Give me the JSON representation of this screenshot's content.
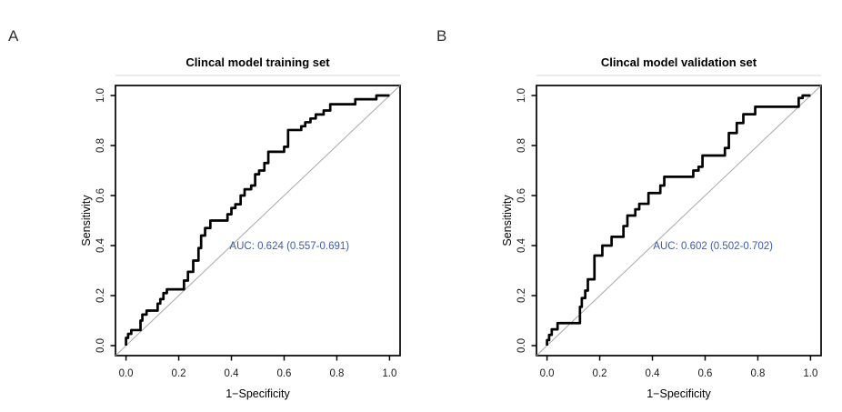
{
  "figure": {
    "background": "#ffffff",
    "colors": {
      "axis": "#000000",
      "tick_text": "#1a1a1a",
      "curve": "#000000",
      "reference_line": "#a8a8a8",
      "annotation": "#3e5ca6",
      "header_rule": "#dadada",
      "panel_letter": "#2f2f2f"
    }
  },
  "chart_data": [
    {
      "panel": "A",
      "type": "line",
      "subtype": "roc-step-curve",
      "title": "Clincal model training set",
      "xlabel": "1−Specificity",
      "ylabel": "Sensitivity",
      "xlim": [
        0,
        1
      ],
      "ylim": [
        0,
        1
      ],
      "axis_padding_frac": 0.04,
      "grid": false,
      "legend": null,
      "xticks": [
        0.0,
        0.2,
        0.4,
        0.6,
        0.8,
        1.0
      ],
      "yticks": [
        0.0,
        0.2,
        0.4,
        0.6,
        0.8,
        1.0
      ],
      "xtick_labels": [
        "0.0",
        "0.2",
        "0.4",
        "0.6",
        "0.8",
        "1.0"
      ],
      "ytick_labels": [
        "0.0",
        "0.2",
        "0.4",
        "0.6",
        "0.8",
        "1.0"
      ],
      "reference_line": {
        "from": [
          0,
          0
        ],
        "to": [
          1,
          1
        ]
      },
      "auc": 0.624,
      "auc_ci": [
        0.557,
        0.691
      ],
      "annotation": {
        "text": "AUC:  0.624 (0.557-0.691)",
        "x": 0.62,
        "y": 0.385
      },
      "series": [
        {
          "name": "ROC curve",
          "points": [
            [
              0,
              0
            ],
            [
              0,
              0.031
            ],
            [
              0.008,
              0.031
            ],
            [
              0.008,
              0.047
            ],
            [
              0.02,
              0.047
            ],
            [
              0.02,
              0.062
            ],
            [
              0.032,
              0.062
            ],
            [
              0.055,
              0.062
            ],
            [
              0.055,
              0.1
            ],
            [
              0.062,
              0.1
            ],
            [
              0.062,
              0.124
            ],
            [
              0.078,
              0.124
            ],
            [
              0.078,
              0.14
            ],
            [
              0.12,
              0.14
            ],
            [
              0.12,
              0.168
            ],
            [
              0.13,
              0.168
            ],
            [
              0.13,
              0.186
            ],
            [
              0.142,
              0.186
            ],
            [
              0.142,
              0.21
            ],
            [
              0.155,
              0.21
            ],
            [
              0.155,
              0.225
            ],
            [
              0.22,
              0.225
            ],
            [
              0.22,
              0.26
            ],
            [
              0.235,
              0.26
            ],
            [
              0.235,
              0.295
            ],
            [
              0.255,
              0.295
            ],
            [
              0.255,
              0.34
            ],
            [
              0.275,
              0.34
            ],
            [
              0.275,
              0.39
            ],
            [
              0.285,
              0.39
            ],
            [
              0.285,
              0.44
            ],
            [
              0.3,
              0.44
            ],
            [
              0.3,
              0.47
            ],
            [
              0.32,
              0.47
            ],
            [
              0.32,
              0.5
            ],
            [
              0.385,
              0.5
            ],
            [
              0.385,
              0.525
            ],
            [
              0.4,
              0.525
            ],
            [
              0.4,
              0.55
            ],
            [
              0.415,
              0.55
            ],
            [
              0.415,
              0.565
            ],
            [
              0.435,
              0.565
            ],
            [
              0.435,
              0.6
            ],
            [
              0.45,
              0.6
            ],
            [
              0.45,
              0.625
            ],
            [
              0.475,
              0.625
            ],
            [
              0.475,
              0.64
            ],
            [
              0.49,
              0.64
            ],
            [
              0.49,
              0.685
            ],
            [
              0.505,
              0.685
            ],
            [
              0.505,
              0.7
            ],
            [
              0.525,
              0.7
            ],
            [
              0.525,
              0.73
            ],
            [
              0.54,
              0.73
            ],
            [
              0.54,
              0.775
            ],
            [
              0.555,
              0.775
            ],
            [
              0.6,
              0.775
            ],
            [
              0.6,
              0.795
            ],
            [
              0.615,
              0.795
            ],
            [
              0.615,
              0.862
            ],
            [
              0.63,
              0.862
            ],
            [
              0.665,
              0.862
            ],
            [
              0.665,
              0.877
            ],
            [
              0.68,
              0.877
            ],
            [
              0.68,
              0.893
            ],
            [
              0.7,
              0.893
            ],
            [
              0.7,
              0.908
            ],
            [
              0.72,
              0.908
            ],
            [
              0.72,
              0.924
            ],
            [
              0.75,
              0.924
            ],
            [
              0.75,
              0.94
            ],
            [
              0.775,
              0.94
            ],
            [
              0.775,
              0.965
            ],
            [
              0.8,
              0.965
            ],
            [
              0.87,
              0.965
            ],
            [
              0.87,
              0.985
            ],
            [
              0.95,
              0.985
            ],
            [
              0.95,
              1
            ],
            [
              1,
              1
            ]
          ]
        }
      ]
    },
    {
      "panel": "B",
      "type": "line",
      "subtype": "roc-step-curve",
      "title": "Clincal model validation set",
      "xlabel": "1−Specificity",
      "ylabel": "Sensitivity",
      "xlim": [
        0,
        1
      ],
      "ylim": [
        0,
        1
      ],
      "axis_padding_frac": 0.04,
      "grid": false,
      "legend": null,
      "xticks": [
        0.0,
        0.2,
        0.4,
        0.6,
        0.8,
        1.0
      ],
      "yticks": [
        0.0,
        0.2,
        0.4,
        0.6,
        0.8,
        1.0
      ],
      "xtick_labels": [
        "0.0",
        "0.2",
        "0.4",
        "0.6",
        "0.8",
        "1.0"
      ],
      "ytick_labels": [
        "0.0",
        "0.2",
        "0.4",
        "0.6",
        "0.8",
        "1.0"
      ],
      "reference_line": {
        "from": [
          0,
          0
        ],
        "to": [
          1,
          1
        ]
      },
      "auc": 0.602,
      "auc_ci": [
        0.502,
        0.702
      ],
      "annotation": {
        "text": "AUC:  0.602 (0.502-0.702)",
        "x": 0.63,
        "y": 0.385
      },
      "series": [
        {
          "name": "ROC curve",
          "points": [
            [
              0,
              0
            ],
            [
              0,
              0.022
            ],
            [
              0.008,
              0.022
            ],
            [
              0.008,
              0.043
            ],
            [
              0.018,
              0.043
            ],
            [
              0.018,
              0.065
            ],
            [
              0.04,
              0.065
            ],
            [
              0.04,
              0.09
            ],
            [
              0.055,
              0.09
            ],
            [
              0.125,
              0.09
            ],
            [
              0.125,
              0.155
            ],
            [
              0.132,
              0.155
            ],
            [
              0.132,
              0.19
            ],
            [
              0.145,
              0.19
            ],
            [
              0.145,
              0.22
            ],
            [
              0.155,
              0.22
            ],
            [
              0.155,
              0.265
            ],
            [
              0.18,
              0.265
            ],
            [
              0.18,
              0.36
            ],
            [
              0.21,
              0.36
            ],
            [
              0.21,
              0.4
            ],
            [
              0.245,
              0.4
            ],
            [
              0.245,
              0.435
            ],
            [
              0.29,
              0.435
            ],
            [
              0.29,
              0.478
            ],
            [
              0.305,
              0.478
            ],
            [
              0.305,
              0.52
            ],
            [
              0.335,
              0.52
            ],
            [
              0.335,
              0.545
            ],
            [
              0.35,
              0.545
            ],
            [
              0.35,
              0.567
            ],
            [
              0.385,
              0.567
            ],
            [
              0.385,
              0.61
            ],
            [
              0.43,
              0.61
            ],
            [
              0.43,
              0.64
            ],
            [
              0.445,
              0.64
            ],
            [
              0.445,
              0.675
            ],
            [
              0.46,
              0.675
            ],
            [
              0.555,
              0.675
            ],
            [
              0.555,
              0.7
            ],
            [
              0.575,
              0.7
            ],
            [
              0.575,
              0.715
            ],
            [
              0.59,
              0.715
            ],
            [
              0.59,
              0.76
            ],
            [
              0.675,
              0.76
            ],
            [
              0.675,
              0.79
            ],
            [
              0.69,
              0.79
            ],
            [
              0.69,
              0.85
            ],
            [
              0.72,
              0.85
            ],
            [
              0.72,
              0.89
            ],
            [
              0.745,
              0.89
            ],
            [
              0.745,
              0.925
            ],
            [
              0.79,
              0.925
            ],
            [
              0.79,
              0.955
            ],
            [
              0.815,
              0.955
            ],
            [
              0.955,
              0.955
            ],
            [
              0.955,
              0.99
            ],
            [
              0.97,
              0.99
            ],
            [
              0.97,
              1
            ],
            [
              1,
              1
            ]
          ]
        }
      ]
    }
  ]
}
